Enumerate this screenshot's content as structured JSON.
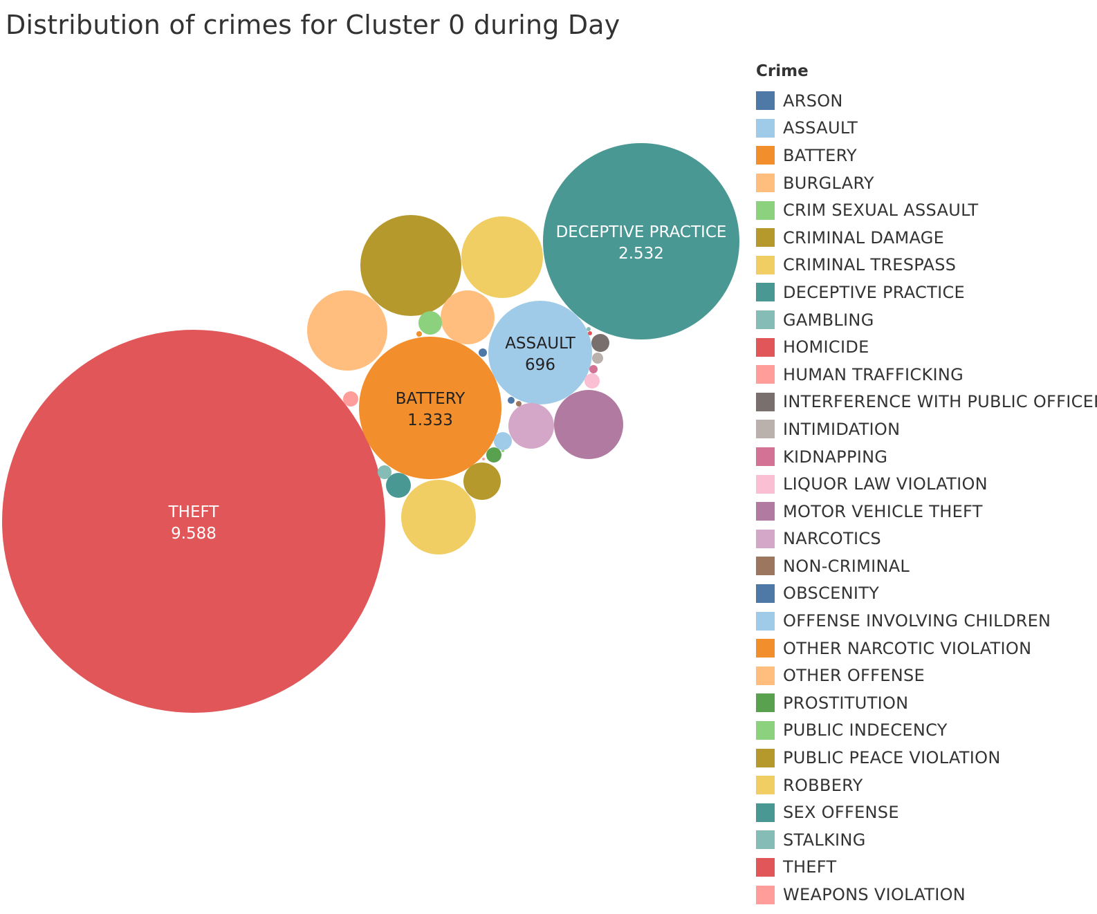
{
  "chart_data": {
    "type": "bubble",
    "title": "Distribution of crimes for Cluster 0 during Day",
    "legend": {
      "title": "Crime",
      "position": "right",
      "items": [
        {
          "label": "ARSON",
          "color": "#4e79a7"
        },
        {
          "label": "ASSAULT",
          "color": "#a0cbe8"
        },
        {
          "label": "BATTERY",
          "color": "#f28e2b"
        },
        {
          "label": "BURGLARY",
          "color": "#ffbe7d"
        },
        {
          "label": "CRIM SEXUAL ASSAULT",
          "color": "#8cd17d"
        },
        {
          "label": "CRIMINAL DAMAGE",
          "color": "#b6992d"
        },
        {
          "label": "CRIMINAL TRESPASS",
          "color": "#f1ce63"
        },
        {
          "label": "DECEPTIVE PRACTICE",
          "color": "#499894"
        },
        {
          "label": "GAMBLING",
          "color": "#86bcb6"
        },
        {
          "label": "HOMICIDE",
          "color": "#e15759"
        },
        {
          "label": "HUMAN TRAFFICKING",
          "color": "#ff9d9a"
        },
        {
          "label": "INTERFERENCE WITH PUBLIC OFFICER",
          "color": "#79706e"
        },
        {
          "label": "INTIMIDATION",
          "color": "#bab0ac"
        },
        {
          "label": "KIDNAPPING",
          "color": "#d37295"
        },
        {
          "label": "LIQUOR LAW VIOLATION",
          "color": "#fabfd2"
        },
        {
          "label": "MOTOR VEHICLE THEFT",
          "color": "#b07aa1"
        },
        {
          "label": "NARCOTICS",
          "color": "#d4a6c8"
        },
        {
          "label": "NON-CRIMINAL",
          "color": "#9d7660"
        },
        {
          "label": "OBSCENITY",
          "color": "#4e79a7"
        },
        {
          "label": "OFFENSE INVOLVING CHILDREN",
          "color": "#a0cbe8"
        },
        {
          "label": "OTHER NARCOTIC VIOLATION",
          "color": "#f28e2b"
        },
        {
          "label": "OTHER OFFENSE",
          "color": "#ffbe7d"
        },
        {
          "label": "PROSTITUTION",
          "color": "#59a14f"
        },
        {
          "label": "PUBLIC INDECENCY",
          "color": "#8cd17d"
        },
        {
          "label": "PUBLIC PEACE VIOLATION",
          "color": "#b6992d"
        },
        {
          "label": "ROBBERY",
          "color": "#f1ce63"
        },
        {
          "label": "SEX OFFENSE",
          "color": "#499894"
        },
        {
          "label": "STALKING",
          "color": "#86bcb6"
        },
        {
          "label": "THEFT",
          "color": "#e15759"
        },
        {
          "label": "WEAPONS VIOLATION",
          "color": "#ff9d9a"
        }
      ]
    },
    "data_labels": [
      {
        "crime": "THEFT",
        "value": "9.588"
      },
      {
        "crime": "DECEPTIVE PRACTICE",
        "value": "2.532"
      },
      {
        "crime": "BATTERY",
        "value": "1.333"
      },
      {
        "crime": "ASSAULT",
        "value": "696"
      }
    ]
  }
}
